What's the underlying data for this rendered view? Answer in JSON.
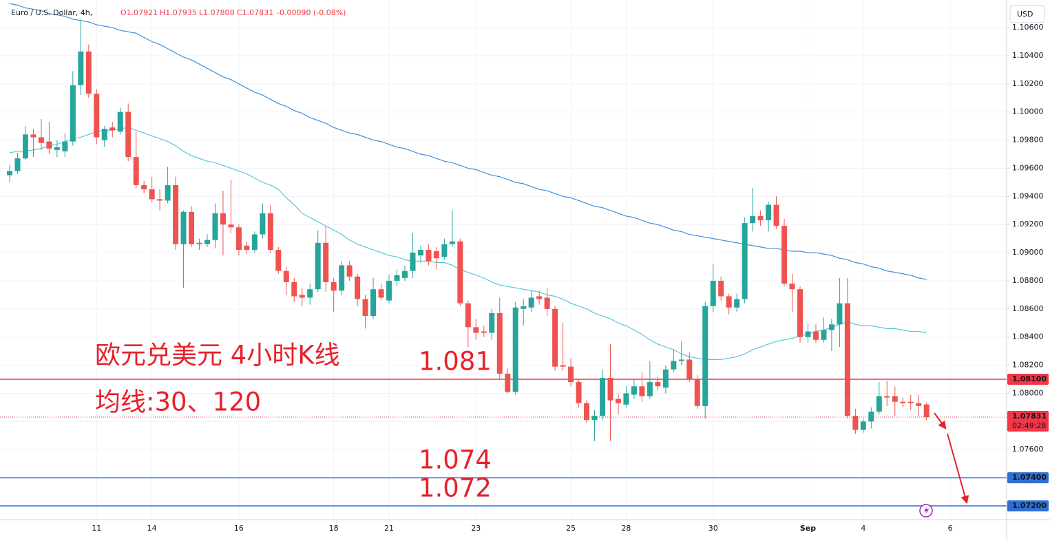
{
  "chart_data": {
    "type": "candlestick",
    "title": "Euro / U.S. Dollar, 4h,",
    "ohlc_header": [
      "O1.07921",
      "H1.07935",
      "L1.07808",
      "C1.07831",
      "-0.00090 (-0.08%)"
    ],
    "currency": "USD",
    "annotations": [
      "欧元兑美元 4小时K线",
      "均线:30、120"
    ],
    "categories": [
      null,
      null,
      null,
      null,
      null,
      null,
      null,
      null,
      null,
      null,
      null,
      "11",
      null,
      null,
      null,
      null,
      null,
      null,
      "14",
      null,
      null,
      null,
      null,
      null,
      null,
      null,
      null,
      null,
      null,
      "16",
      null,
      null,
      null,
      null,
      null,
      null,
      null,
      null,
      null,
      null,
      null,
      "18",
      null,
      null,
      null,
      null,
      null,
      null,
      "21",
      null,
      null,
      null,
      null,
      null,
      null,
      null,
      null,
      null,
      null,
      "23",
      null,
      null,
      null,
      null,
      null,
      null,
      null,
      null,
      null,
      null,
      null,
      "25",
      null,
      null,
      null,
      null,
      null,
      null,
      "28",
      null,
      null,
      null,
      null,
      null,
      null,
      null,
      null,
      null,
      null,
      "30",
      null,
      null,
      null,
      null,
      null,
      null,
      null,
      null,
      null,
      null,
      null,
      "Sep",
      null,
      null,
      null,
      null,
      null,
      null,
      "4",
      null,
      null,
      null,
      null,
      null,
      null,
      null,
      null,
      null,
      null,
      "6"
    ],
    "open": [
      1.0955,
      1.0958,
      1.0967,
      1.0984,
      1.0982,
      1.0979,
      1.0973,
      1.0972,
      1.0979,
      1.1019,
      1.1043,
      1.1013,
      1.098,
      1.0989,
      1.0986,
      1.1,
      1.0968,
      1.0948,
      1.0945,
      1.0938,
      1.0937,
      1.0948,
      1.0906,
      1.0929,
      1.0907,
      1.0906,
      1.0909,
      1.0928,
      1.092,
      1.0918,
      1.0905,
      1.0902,
      1.0913,
      1.0928,
      1.0902,
      1.0887,
      1.0879,
      1.087,
      1.0868,
      1.0874,
      1.0907,
      1.0879,
      1.0873,
      1.0891,
      1.0883,
      1.0867,
      1.0855,
      1.0874,
      1.0866,
      1.088,
      1.0882,
      1.0887,
      1.0898,
      1.0902,
      1.0901,
      1.0897,
      1.0906,
      1.0908,
      1.0864,
      1.0847,
      1.0844,
      1.0843,
      1.0857,
      1.0814,
      1.0801,
      1.086,
      1.0861,
      1.0869,
      1.0868,
      1.086,
      1.082,
      1.0819,
      1.0808,
      1.0793,
      1.0781,
      1.0784,
      1.0811,
      1.0796,
      1.0792,
      1.0799,
      1.0805,
      1.0798,
      1.0808,
      1.0804,
      1.0817,
      1.0823,
      1.0824,
      1.081,
      1.0791,
      1.0862,
      1.088,
      1.0869,
      1.0861,
      1.0867,
      1.0921,
      1.0926,
      1.0923,
      1.0934,
      1.0919,
      1.0878,
      1.0874,
      1.084,
      1.0844,
      1.0838,
      1.0845,
      1.0849,
      1.0864,
      1.0784,
      1.0774,
      1.078,
      1.0787,
      1.0798,
      1.0798,
      1.0794,
      1.0794,
      1.0793,
      1.07921,
      null,
      null,
      null
    ],
    "high": [
      1.0962,
      1.0971,
      1.099,
      1.0988,
      1.0995,
      1.0993,
      1.098,
      1.0985,
      1.1029,
      1.1066,
      1.1048,
      1.1016,
      1.099,
      1.0993,
      1.1003,
      1.1006,
      1.0986,
      1.0951,
      1.0954,
      1.0945,
      1.0961,
      1.0954,
      1.093,
      1.0933,
      1.091,
      1.0913,
      1.0935,
      1.0944,
      1.0952,
      1.092,
      1.0908,
      1.0915,
      1.0935,
      1.0934,
      1.0904,
      1.089,
      1.0882,
      1.0875,
      1.0878,
      1.0916,
      1.0919,
      1.0882,
      1.0894,
      1.0894,
      1.0885,
      1.087,
      1.0882,
      1.0878,
      1.0884,
      1.0888,
      1.0891,
      1.0914,
      1.0905,
      1.0906,
      1.0904,
      1.091,
      1.093,
      1.091,
      1.0866,
      1.0853,
      1.0848,
      1.086,
      1.0868,
      1.0818,
      1.0865,
      1.0867,
      1.0873,
      1.0873,
      1.0875,
      1.0862,
      1.085,
      1.0825,
      1.081,
      1.0795,
      1.0788,
      1.0817,
      1.0835,
      1.08,
      1.0805,
      1.081,
      1.0815,
      1.0823,
      1.0812,
      1.082,
      1.0831,
      1.0837,
      1.0829,
      1.0813,
      1.0865,
      1.0892,
      1.0883,
      1.0871,
      1.0871,
      1.0925,
      1.0946,
      1.093,
      1.0936,
      1.094,
      1.0924,
      1.0885,
      1.0876,
      1.085,
      1.0849,
      1.0854,
      1.0853,
      1.0882,
      1.0882,
      1.0789,
      1.0782,
      1.079,
      1.0808,
      1.0809,
      1.0805,
      1.0797,
      1.0799,
      1.0799,
      1.07935,
      null,
      null,
      null
    ],
    "low": [
      1.095,
      1.0956,
      1.0966,
      1.0968,
      1.0973,
      1.097,
      1.0968,
      1.0968,
      1.0976,
      1.1012,
      1.101,
      1.0977,
      1.0975,
      1.0982,
      1.0984,
      1.0965,
      1.0946,
      1.0942,
      1.0936,
      1.093,
      1.0935,
      1.0902,
      1.0875,
      1.0904,
      1.0902,
      1.0904,
      1.0903,
      1.0898,
      1.0914,
      1.0898,
      1.0899,
      1.09,
      1.091,
      1.09,
      1.0885,
      1.087,
      1.0865,
      1.0862,
      1.0863,
      1.0872,
      1.0872,
      1.0858,
      1.087,
      1.088,
      1.0862,
      1.0846,
      1.0853,
      1.0866,
      1.0864,
      1.0876,
      1.088,
      1.0882,
      1.0893,
      1.0891,
      1.0888,
      1.0895,
      1.0904,
      1.0862,
      1.0833,
      1.0838,
      1.084,
      1.0838,
      1.081,
      1.08,
      1.0799,
      1.0848,
      1.0858,
      1.0863,
      1.0855,
      1.0816,
      1.0816,
      1.0805,
      1.079,
      1.0779,
      1.0766,
      1.0781,
      1.0766,
      1.0785,
      1.079,
      1.0796,
      1.0794,
      1.0796,
      1.0802,
      1.08,
      1.0815,
      1.082,
      1.0808,
      1.0789,
      1.0782,
      1.0858,
      1.0866,
      1.0856,
      1.0858,
      1.0864,
      1.0915,
      1.0919,
      1.0915,
      1.0917,
      1.0876,
      1.0858,
      1.0836,
      1.0836,
      1.0836,
      1.0836,
      1.083,
      1.0833,
      1.0782,
      1.0771,
      1.0772,
      1.0775,
      1.0785,
      1.0791,
      1.0784,
      1.079,
      1.0788,
      1.0784,
      1.07808,
      null,
      null,
      null
    ],
    "close": [
      1.0958,
      1.0967,
      1.0984,
      1.0982,
      1.0978,
      1.0974,
      1.0975,
      1.0979,
      1.1019,
      1.1043,
      1.1013,
      1.0982,
      1.0988,
      1.0987,
      1.1,
      1.0968,
      1.0948,
      1.0945,
      1.0938,
      1.0937,
      1.0948,
      1.0906,
      1.0929,
      1.0906,
      1.0906,
      1.0909,
      1.0928,
      1.092,
      1.0918,
      1.0902,
      1.0902,
      1.0913,
      1.0928,
      1.0902,
      1.0887,
      1.0879,
      1.0869,
      1.0868,
      1.0874,
      1.0907,
      1.0879,
      1.0873,
      1.0891,
      1.0883,
      1.0867,
      1.0855,
      1.0874,
      1.0868,
      1.088,
      1.0884,
      1.0887,
      1.09,
      1.0902,
      1.0894,
      1.0896,
      1.0906,
      1.0908,
      1.0864,
      1.0847,
      1.0843,
      1.0843,
      1.0857,
      1.0814,
      1.0801,
      1.0861,
      1.0862,
      1.0868,
      1.0867,
      1.086,
      1.0819,
      1.0819,
      1.0808,
      1.0793,
      1.0781,
      1.0784,
      1.0811,
      1.0795,
      1.0793,
      1.08,
      1.0805,
      1.0798,
      1.0808,
      1.0805,
      1.0817,
      1.0823,
      1.0824,
      1.081,
      1.0791,
      1.0862,
      1.088,
      1.0869,
      1.0861,
      1.0867,
      1.0921,
      1.0926,
      1.0923,
      1.0934,
      1.0919,
      1.0878,
      1.0874,
      1.084,
      1.0844,
      1.0838,
      1.0845,
      1.0849,
      1.0864,
      1.0784,
      1.0774,
      1.078,
      1.0787,
      1.0798,
      1.0797,
      1.0794,
      1.0793,
      1.0793,
      1.0791,
      1.07831,
      null,
      null,
      null
    ],
    "up_color": "#26a69a",
    "down_color": "#ef5350",
    "series": [
      {
        "color": "#52c7dd",
        "values": [
          1.0971,
          1.0972,
          1.0972,
          1.0973,
          1.0974,
          1.0976,
          1.0977,
          1.0979,
          1.0981,
          1.0982,
          1.0984,
          1.0986,
          1.0987,
          1.0987,
          1.0988,
          1.0989,
          1.0987,
          1.0985,
          1.0983,
          1.0981,
          1.0979,
          1.0976,
          1.0972,
          1.0969,
          1.0967,
          1.0965,
          1.0964,
          1.0962,
          1.096,
          1.0958,
          1.0956,
          1.0953,
          1.095,
          1.0948,
          1.0945,
          1.0939,
          1.0934,
          1.0928,
          1.0925,
          1.0922,
          1.0919,
          1.0916,
          1.0913,
          1.0909,
          1.0906,
          1.0904,
          1.0902,
          1.09,
          1.0898,
          1.0897,
          1.0895,
          1.0894,
          1.0894,
          1.0894,
          1.0893,
          1.0893,
          1.0891,
          1.0888,
          1.0886,
          1.0884,
          1.0882,
          1.0879,
          1.0877,
          1.0876,
          1.0875,
          1.0874,
          1.0873,
          1.0872,
          1.087,
          1.0869,
          1.0867,
          1.0864,
          1.0862,
          1.086,
          1.0857,
          1.0855,
          1.0853,
          1.085,
          1.0848,
          1.0845,
          1.0842,
          1.0838,
          1.0835,
          1.0833,
          1.0831,
          1.0828,
          1.0826,
          1.0825,
          1.0824,
          1.0824,
          1.0824,
          1.0825,
          1.0826,
          1.0828,
          1.0831,
          1.0833,
          1.0835,
          1.0837,
          1.0838,
          1.0839,
          1.0841,
          1.0842,
          1.0844,
          1.0845,
          1.0847,
          1.0849,
          1.0851,
          1.0849,
          1.0848,
          1.0848,
          1.0847,
          1.0846,
          1.0846,
          1.0845,
          1.0844,
          1.0844,
          1.0843,
          null,
          null,
          null
        ]
      },
      {
        "color": "#3b8fdc",
        "values": [
          1.1077,
          1.1076,
          1.1074,
          1.1073,
          1.1072,
          1.107,
          1.1069,
          1.1068,
          1.1066,
          1.1065,
          1.1064,
          1.1062,
          1.1061,
          1.106,
          1.1058,
          1.1057,
          1.1056,
          1.1053,
          1.105,
          1.1048,
          1.1045,
          1.1042,
          1.1039,
          1.1037,
          1.1034,
          1.1031,
          1.1028,
          1.1025,
          1.1023,
          1.102,
          1.1017,
          1.1014,
          1.1012,
          1.1009,
          1.1006,
          1.1004,
          1.1001,
          1.0999,
          1.0996,
          1.0994,
          1.0992,
          1.0989,
          1.0987,
          1.0985,
          1.0984,
          1.0982,
          1.098,
          1.0979,
          1.0977,
          1.0975,
          1.0974,
          1.0972,
          1.097,
          1.0969,
          1.0967,
          1.0965,
          1.0964,
          1.0962,
          1.096,
          1.0959,
          1.0957,
          1.0955,
          1.0954,
          1.0952,
          1.095,
          1.0949,
          1.0947,
          1.0945,
          1.0944,
          1.0942,
          1.094,
          1.0939,
          1.0937,
          1.0935,
          1.0933,
          1.0932,
          1.093,
          1.0928,
          1.0926,
          1.0925,
          1.0923,
          1.0921,
          1.092,
          1.0918,
          1.0916,
          1.0915,
          1.0913,
          1.0912,
          1.0911,
          1.091,
          1.0909,
          1.0908,
          1.0907,
          1.0906,
          1.0905,
          1.0904,
          1.0903,
          1.0903,
          1.0902,
          1.0901,
          1.0901,
          1.09,
          1.09,
          1.0899,
          1.0898,
          1.0896,
          1.0895,
          1.0893,
          1.0892,
          1.089,
          1.0889,
          1.0887,
          1.0886,
          1.0885,
          1.0884,
          1.0882,
          1.0881,
          null,
          null,
          null
        ]
      }
    ],
    "hlines": [
      {
        "value": 1.081,
        "label": "1.08100",
        "text": "1.081",
        "color": "#f23645"
      },
      {
        "value": 1.074,
        "label": "1.07400",
        "text": "1.074",
        "color": "#2f6fd1"
      },
      {
        "value": 1.072,
        "label": "1.07200",
        "text": "1.072",
        "color": "#2f6fd1"
      }
    ],
    "last_price": {
      "value": 1.07831,
      "label": "1.07831",
      "countdown": "02:49:28",
      "color": "#f23645"
    },
    "ylim": [
      1.07102,
      1.10796
    ],
    "yticks": [
      {
        "value": 1.106,
        "label": "1.10600"
      },
      {
        "value": 1.104,
        "label": "1.10400"
      },
      {
        "value": 1.102,
        "label": "1.10200"
      },
      {
        "value": 1.1,
        "label": "1.10000"
      },
      {
        "value": 1.098,
        "label": "1.09800"
      },
      {
        "value": 1.096,
        "label": "1.09600"
      },
      {
        "value": 1.094,
        "label": "1.09400"
      },
      {
        "value": 1.092,
        "label": "1.09200"
      },
      {
        "value": 1.09,
        "label": "1.09000"
      },
      {
        "value": 1.088,
        "label": "1.08800"
      },
      {
        "value": 1.086,
        "label": "1.08600"
      },
      {
        "value": 1.084,
        "label": "1.08400"
      },
      {
        "value": 1.082,
        "label": "1.08200"
      },
      {
        "value": 1.08,
        "label": "1.08000"
      },
      {
        "value": 1.078,
        "label": "1.07800"
      },
      {
        "value": 1.076,
        "label": "1.07600"
      }
    ],
    "grid": true
  }
}
